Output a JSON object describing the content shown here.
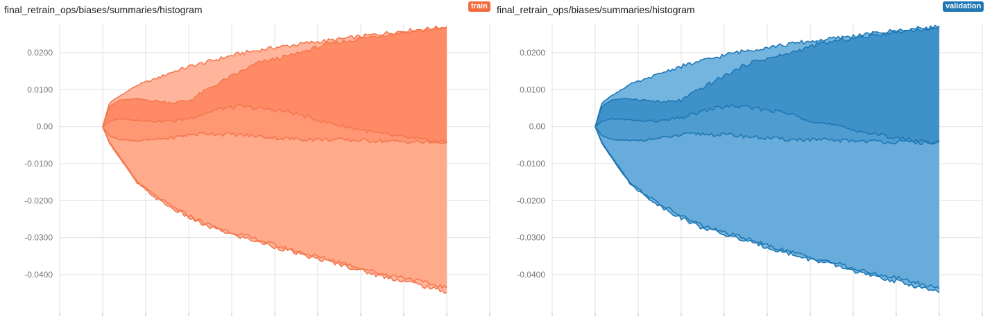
{
  "chart_data": [
    {
      "type": "area",
      "title": "final_retrain_ops/biases/summaries/histogram",
      "run": "train",
      "colors": {
        "outer": "#ffb59b",
        "band": "#ffa17e",
        "inner": "#ff8b66",
        "line": "#f4774e",
        "badge": "#f26c3f"
      },
      "xlabel": "",
      "ylabel": "",
      "ylim": [
        -0.0505,
        0.029
      ],
      "yticks": [
        0.02,
        0.01,
        0.0,
        -0.01,
        -0.02,
        -0.03,
        -0.04
      ],
      "ytick_labels": [
        "0.0200",
        "0.0100",
        "0.00",
        "-0.0100",
        "-0.0200",
        "-0.0300",
        "-0.0400"
      ],
      "x": [
        0,
        0.02,
        0.05,
        0.1,
        0.15,
        0.2,
        0.25,
        0.3,
        0.35,
        0.4,
        0.45,
        0.5,
        0.55,
        0.6,
        0.65,
        0.7,
        0.75,
        0.8,
        0.85,
        0.9,
        0.95,
        1.0
      ],
      "series": [
        {
          "values": [
            0.0,
            0.0065,
            0.0083,
            0.0112,
            0.0128,
            0.0147,
            0.0162,
            0.0174,
            0.0186,
            0.0198,
            0.0206,
            0.0214,
            0.022,
            0.0227,
            0.0232,
            0.0238,
            0.0244,
            0.025,
            0.0256,
            0.0261,
            0.0265,
            0.027
          ]
        },
        {
          "values": [
            0.0,
            0.0055,
            0.0072,
            0.0075,
            0.007,
            0.0065,
            0.007,
            0.0098,
            0.0124,
            0.0148,
            0.0172,
            0.0183,
            0.0193,
            0.0208,
            0.0222,
            0.023,
            0.0238,
            0.0245,
            0.0252,
            0.0258,
            0.0262,
            0.0267
          ]
        },
        {
          "values": [
            0.0,
            0.0015,
            0.0022,
            0.0018,
            0.0015,
            0.0015,
            0.0023,
            0.0037,
            0.005,
            0.0055,
            0.005,
            0.0045,
            0.0038,
            0.0025,
            0.0012,
            0.0002,
            -0.0008,
            -0.0018,
            -0.0025,
            -0.0032,
            -0.0038,
            -0.0042
          ]
        },
        {
          "values": [
            0.0,
            -0.0025,
            -0.0035,
            -0.0038,
            -0.0035,
            -0.003,
            -0.0022,
            -0.0018,
            -0.002,
            -0.0022,
            -0.0026,
            -0.003,
            -0.0033,
            -0.0034,
            -0.0035,
            -0.0036,
            -0.0037,
            -0.0038,
            -0.004,
            -0.0041,
            -0.0042,
            -0.0043
          ]
        },
        {
          "values": [
            0.0,
            -0.0042,
            -0.0082,
            -0.0148,
            -0.0185,
            -0.0215,
            -0.024,
            -0.0262,
            -0.0278,
            -0.0292,
            -0.0305,
            -0.032,
            -0.0333,
            -0.0346,
            -0.0357,
            -0.0368,
            -0.0382,
            -0.0395,
            -0.0403,
            -0.0412,
            -0.0425,
            -0.0435
          ]
        },
        {
          "values": [
            0.0,
            -0.0045,
            -0.0085,
            -0.0152,
            -0.019,
            -0.022,
            -0.0245,
            -0.0268,
            -0.0283,
            -0.0298,
            -0.031,
            -0.0325,
            -0.0338,
            -0.0352,
            -0.0363,
            -0.0375,
            -0.0388,
            -0.0402,
            -0.0412,
            -0.0422,
            -0.0435,
            -0.0447
          ]
        }
      ]
    },
    {
      "type": "area",
      "title": "final_retrain_ops/biases/summaries/histogram",
      "run": "validation",
      "colors": {
        "outer": "#74b5df",
        "band": "#5ca4d5",
        "inner": "#3f92c9",
        "line": "#1f77b4",
        "badge": "#1f77b4"
      },
      "xlabel": "",
      "ylabel": "",
      "ylim": [
        -0.0505,
        0.029
      ],
      "yticks": [
        0.02,
        0.01,
        0.0,
        -0.01,
        -0.02,
        -0.03,
        -0.04
      ],
      "ytick_labels": [
        "0.0200",
        "0.0100",
        "0.00",
        "-0.0100",
        "-0.0200",
        "-0.0300",
        "-0.0400"
      ],
      "x": [
        0,
        0.02,
        0.05,
        0.1,
        0.15,
        0.2,
        0.25,
        0.3,
        0.35,
        0.4,
        0.45,
        0.5,
        0.55,
        0.6,
        0.65,
        0.7,
        0.75,
        0.8,
        0.85,
        0.9,
        0.95,
        1.0
      ],
      "series": [
        {
          "values": [
            0.0,
            0.0066,
            0.0085,
            0.0114,
            0.0129,
            0.0148,
            0.0163,
            0.0175,
            0.0187,
            0.0199,
            0.0207,
            0.0215,
            0.0221,
            0.0228,
            0.0233,
            0.0239,
            0.0245,
            0.0251,
            0.0257,
            0.0262,
            0.0266,
            0.0271
          ]
        },
        {
          "values": [
            0.0,
            0.0056,
            0.0073,
            0.0076,
            0.0071,
            0.0066,
            0.0071,
            0.0099,
            0.0125,
            0.0149,
            0.0173,
            0.0184,
            0.0194,
            0.0209,
            0.0223,
            0.0231,
            0.0239,
            0.0246,
            0.0253,
            0.0259,
            0.0263,
            0.0268
          ]
        },
        {
          "values": [
            0.0,
            0.0015,
            0.0022,
            0.0018,
            0.0015,
            0.0016,
            0.0024,
            0.0038,
            0.0051,
            0.0056,
            0.0051,
            0.0046,
            0.0038,
            0.0025,
            0.0012,
            0.0002,
            -0.0008,
            -0.0018,
            -0.0026,
            -0.0033,
            -0.0039,
            -0.0043
          ]
        },
        {
          "values": [
            0.0,
            -0.0025,
            -0.0035,
            -0.0038,
            -0.0035,
            -0.003,
            -0.0023,
            -0.0019,
            -0.0021,
            -0.0023,
            -0.0027,
            -0.0031,
            -0.0034,
            -0.0035,
            -0.0036,
            -0.0037,
            -0.0038,
            -0.0039,
            -0.0041,
            -0.0042,
            -0.0043,
            -0.0044
          ]
        },
        {
          "values": [
            0.0,
            -0.0043,
            -0.0083,
            -0.0149,
            -0.0186,
            -0.0216,
            -0.0241,
            -0.0263,
            -0.0279,
            -0.0293,
            -0.0306,
            -0.0321,
            -0.0334,
            -0.0347,
            -0.0358,
            -0.0369,
            -0.0383,
            -0.0396,
            -0.0404,
            -0.0413,
            -0.0426,
            -0.0436
          ]
        },
        {
          "values": [
            0.0,
            -0.0046,
            -0.0086,
            -0.0153,
            -0.0191,
            -0.0221,
            -0.0246,
            -0.0269,
            -0.0284,
            -0.0299,
            -0.0311,
            -0.0326,
            -0.0339,
            -0.0353,
            -0.0364,
            -0.0376,
            -0.0389,
            -0.0403,
            -0.0413,
            -0.0423,
            -0.0436,
            -0.0448
          ]
        }
      ]
    }
  ]
}
